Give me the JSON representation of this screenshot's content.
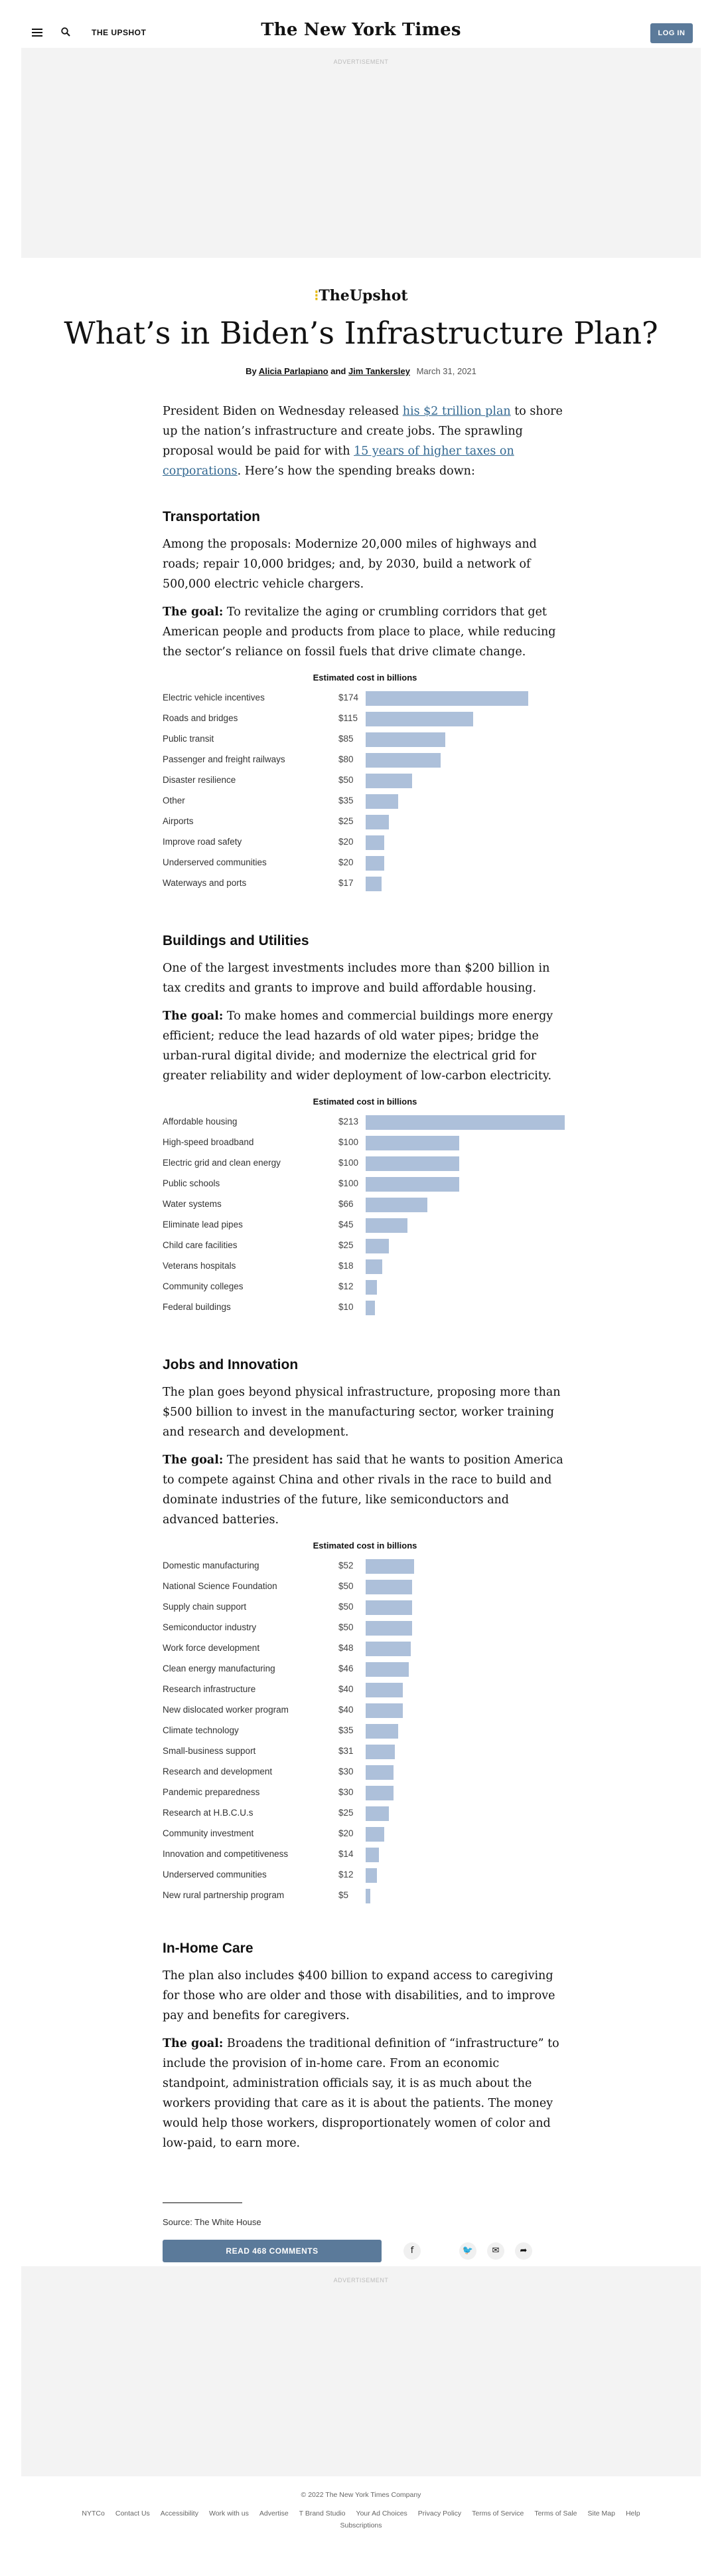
{
  "header": {
    "section_name": "THE UPSHOT",
    "masthead": "The New York Times",
    "login_label": "LOG IN"
  },
  "ads": {
    "label": "ADVERTISEMENT"
  },
  "article": {
    "kicker": "TheUpshot",
    "headline": "What’s in Biden’s Infrastructure Plan?",
    "byline_prefix": "By ",
    "author1": "Alicia Parlapiano",
    "byline_and": " and ",
    "author2": "Jim Tankersley",
    "date": "March 31, 2021",
    "intro_a": "President Biden on Wednesday released ",
    "intro_link1": "his $2 trillion plan",
    "intro_b": " to shore up the nation’s infrastructure and create jobs. The sprawling proposal would be paid for with ",
    "intro_link2": "15 years of higher taxes on corporations",
    "intro_c": ". Here’s how the spending breaks down:",
    "goal_label": "The goal:"
  },
  "sections": [
    {
      "title": "Transportation",
      "text": "Among the proposals: Modernize 20,000 miles of highways and roads; repair 10,000 bridges; and, by 2030, build a network of 500,000 electric vehicle chargers.",
      "goal": " To revitalize the aging or crumbling corridors that get American people and products from place to place, while reducing the sector’s reliance on fossil fuels that drive climate change."
    },
    {
      "title": "Buildings and Utilities",
      "text": "One of the largest investments includes more than $200 billion in tax credits and grants to improve and build affordable housing.",
      "goal": " To make homes and commercial buildings more energy efficient; reduce the lead hazards of old water pipes; bridge the urban-rural digital divide; and modernize the electrical grid for greater reliability and wider deployment of low-carbon electricity."
    },
    {
      "title": "Jobs and Innovation",
      "text": "The plan goes beyond physical infrastructure, proposing more than $500 billion to invest in the manufacturing sector, worker training and research and development.",
      "goal": " The president has said that he wants to position America to compete against China and other rivals in the race to build and dominate industries of the future, like semiconductors and advanced batteries."
    },
    {
      "title": "In-Home Care",
      "text": "The plan also includes $400 billion to expand access to caregiving for those who are older and those with disabilities, and to improve pay and benefits for caregivers.",
      "goal": " Broadens the traditional definition of “infrastructure” to include the provision of in-home care. From an economic standpoint, administration officials say, it is as much about the workers providing that care as it is about the patients. The money would help those workers, disproportionately women of color and low-paid, to earn more."
    }
  ],
  "chart_data": [
    {
      "type": "bar",
      "title": "Estimated cost in billions",
      "categories": [
        "Electric vehicle incentives",
        "Roads and bridges",
        "Public transit",
        "Passenger and freight railways",
        "Disaster resilience",
        "Other",
        "Airports",
        "Improve road safety",
        "Underserved communities",
        "Waterways and ports"
      ],
      "values": [
        174,
        115,
        85,
        80,
        50,
        35,
        25,
        20,
        20,
        17
      ],
      "labels": [
        "$174",
        "$115",
        "$85",
        "$80",
        "$50",
        "$35",
        "$25",
        "$20",
        "$20",
        "$17"
      ]
    },
    {
      "type": "bar",
      "title": "Estimated cost in billions",
      "categories": [
        "Affordable housing",
        "High-speed broadband",
        "Electric grid and clean energy",
        "Public schools",
        "Water systems",
        "Eliminate lead pipes",
        "Child care facilities",
        "Veterans hospitals",
        "Community colleges",
        "Federal buildings"
      ],
      "values": [
        213,
        100,
        100,
        100,
        66,
        45,
        25,
        18,
        12,
        10
      ],
      "labels": [
        "$213",
        "$100",
        "$100",
        "$100",
        "$66",
        "$45",
        "$25",
        "$18",
        "$12",
        "$10"
      ]
    },
    {
      "type": "bar",
      "title": "Estimated cost in billions",
      "categories": [
        "Domestic manufacturing",
        "National Science Foundation",
        "Supply chain support",
        "Semiconductor industry",
        "Work force development",
        "Clean energy manufacturing",
        "Research infrastructure",
        "New dislocated worker program",
        "Climate technology",
        "Small-business support",
        "Research and development",
        "Pandemic preparedness",
        "Research at H.B.C.U.s",
        "Community investment",
        "Innovation and competitiveness",
        "Underserved communities",
        "New rural partnership program"
      ],
      "values": [
        52,
        50,
        50,
        50,
        48,
        46,
        40,
        40,
        35,
        31,
        30,
        30,
        25,
        20,
        14,
        12,
        5
      ],
      "labels": [
        "$52",
        "$50",
        "$50",
        "$50",
        "$48",
        "$46",
        "$40",
        "$40",
        "$35",
        "$31",
        "$30",
        "$30",
        "$25",
        "$20",
        "$14",
        "$12",
        "$5"
      ]
    }
  ],
  "footer": {
    "source": "Source: The White House",
    "comments_label": "READ 468 COMMENTS",
    "share_icons": [
      "facebook-icon",
      "twitter-icon",
      "email-icon",
      "share-icon"
    ],
    "copyright": "© 2022 The New York Times Company",
    "links": [
      "NYTCo",
      "Contact Us",
      "Accessibility",
      "Work with us",
      "Advertise",
      "T Brand Studio",
      "Your Ad Choices",
      "Privacy Policy",
      "Terms of Service",
      "Terms of Sale",
      "Site Map",
      "Help"
    ],
    "links2": "Subscriptions"
  },
  "colors": {
    "bar": "#adc0da",
    "button": "#5b7a9a",
    "link": "#326891"
  }
}
